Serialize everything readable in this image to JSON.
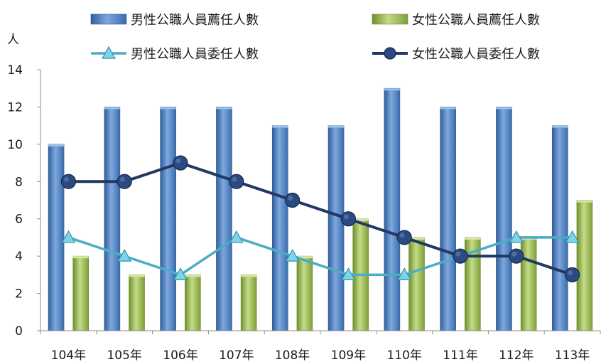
{
  "chart_data": {
    "type": "bar",
    "title": "",
    "xlabel": "",
    "ylabel": "人",
    "ylim": [
      0,
      14
    ],
    "yticks": [
      0,
      2,
      4,
      6,
      8,
      10,
      12,
      14
    ],
    "grid": false,
    "legend_position": "top",
    "categories": [
      "104年",
      "105年",
      "106年",
      "107年",
      "108年",
      "109年",
      "110年",
      "111年",
      "112年",
      "113年"
    ],
    "series": [
      {
        "name": "男性公職人員薦任人數",
        "kind": "bar",
        "color": "#4a7ebf",
        "values": [
          10,
          12,
          12,
          12,
          11,
          11,
          13,
          12,
          12,
          11
        ]
      },
      {
        "name": "女性公職人員薦任人數",
        "kind": "bar",
        "color": "#9bbb59",
        "values": [
          4,
          3,
          3,
          3,
          4,
          6,
          5,
          5,
          5,
          7
        ]
      },
      {
        "name": "男性公職人員委任人數",
        "kind": "line",
        "marker": "triangle",
        "color": "#4bacc6",
        "values": [
          5,
          4,
          3,
          5,
          4,
          3,
          3,
          4,
          5,
          5
        ]
      },
      {
        "name": "女性公職人員委任人數",
        "kind": "line",
        "marker": "circle",
        "color": "#1f3864",
        "values": [
          8,
          8,
          9,
          8,
          7,
          6,
          5,
          4,
          4,
          3
        ]
      }
    ]
  }
}
